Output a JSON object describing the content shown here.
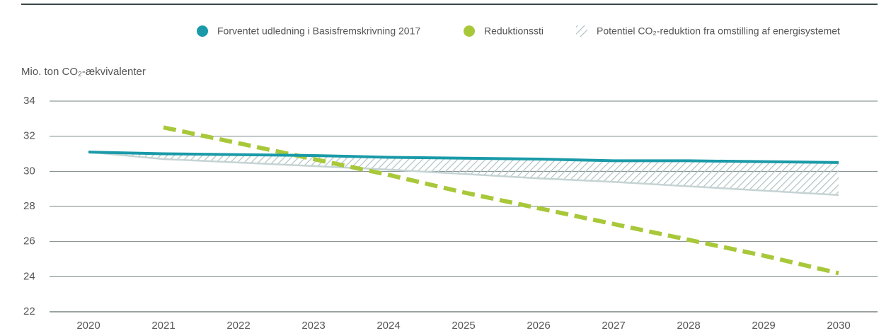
{
  "chart_data": {
    "type": "line",
    "y_label": "Mio. ton CO₂-ækvivalenter",
    "categories": [
      "2020",
      "2021",
      "2022",
      "2023",
      "2024",
      "2025",
      "2026",
      "2027",
      "2028",
      "2029",
      "2030"
    ],
    "series": [
      {
        "name": "Forventet udledning i Basisfremskrivning 2017",
        "color": "#1a9aa8",
        "values": [
          31.1,
          31.0,
          30.95,
          30.9,
          30.8,
          30.75,
          30.7,
          30.6,
          30.6,
          30.55,
          30.5
        ]
      },
      {
        "name": "Reduktionssti",
        "color": "#a8c83a",
        "values": [
          null,
          32.5,
          31.6,
          30.7,
          29.8,
          28.8,
          27.9,
          27.0,
          26.1,
          25.2,
          24.2
        ]
      },
      {
        "name": "Potentiel CO₂-reduktion fra omstilling af energisystemet",
        "color": "#c5d3d3",
        "values": [
          31.1,
          30.7,
          30.5,
          30.3,
          30.1,
          29.85,
          29.6,
          29.4,
          29.15,
          28.9,
          28.65
        ]
      }
    ],
    "ylim": [
      22,
      34
    ],
    "yticks": [
      22,
      24,
      26,
      28,
      30,
      32,
      34
    ],
    "grid": true
  }
}
